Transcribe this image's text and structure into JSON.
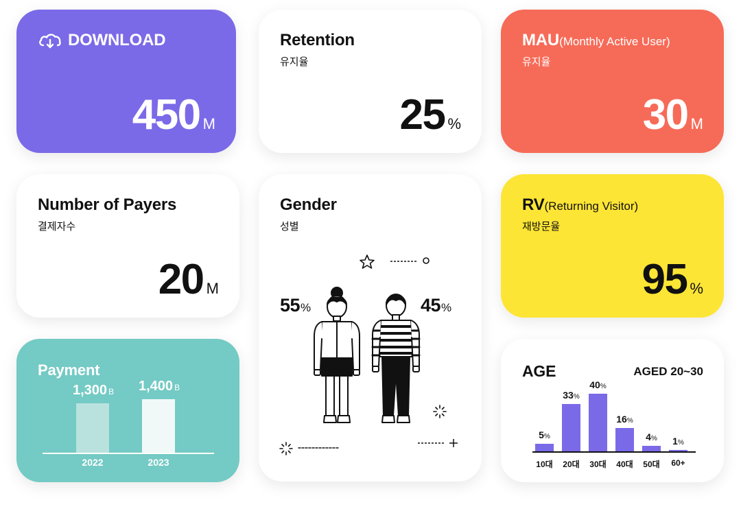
{
  "download": {
    "title": "DOWNLOAD",
    "value": "450",
    "unit": "M",
    "icon": "cloud-download-icon",
    "color": "#7a6ae8"
  },
  "retention": {
    "title": "Retention",
    "subtitle": "유지율",
    "value": "25",
    "unit": "%"
  },
  "mau": {
    "title": "MAU",
    "title_extra": "(Monthly Active User)",
    "subtitle": "유지율",
    "value": "30",
    "unit": "M",
    "color": "#f66b58"
  },
  "payers": {
    "title": "Number of Payers",
    "subtitle": "결제자수",
    "value": "20",
    "unit": "M"
  },
  "gender": {
    "title": "Gender",
    "subtitle": "성별",
    "female": {
      "value": "55",
      "unit": "%"
    },
    "male": {
      "value": "45",
      "unit": "%"
    }
  },
  "rv": {
    "title": "RV",
    "title_extra": "(Returning Visitor)",
    "subtitle": "재방문율",
    "value": "95",
    "unit": "%",
    "color": "#fde535"
  },
  "payment": {
    "title": "Payment",
    "unit": "B",
    "color": "#74cac4",
    "bars": [
      {
        "year": "2022",
        "label": "1,300",
        "value": 1300
      },
      {
        "year": "2023",
        "label": "1,400",
        "value": 1400
      }
    ]
  },
  "age": {
    "title": "AGE",
    "note": "AGED 20~30",
    "bar_color": "#7a6ae8",
    "chart_data": {
      "type": "bar",
      "categories": [
        "10대",
        "20대",
        "30대",
        "40대",
        "50대",
        "60+"
      ],
      "values": [
        5,
        33,
        40,
        16,
        4,
        1
      ],
      "unit": "%"
    }
  }
}
